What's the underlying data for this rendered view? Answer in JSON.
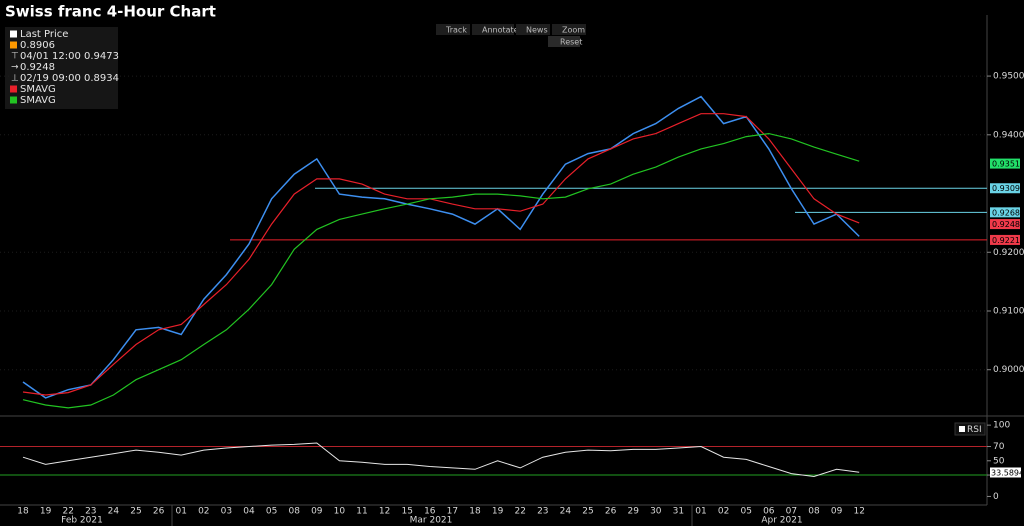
{
  "chart_data": {
    "type": "line",
    "title": "Swiss franc 4-Hour Chart",
    "toolbar": [
      "Track",
      "Annotate",
      "News",
      "Zoom"
    ],
    "reset": "Reset",
    "legend_info": [
      "0.8906",
      "04/01 12:00 0.9473",
      "0.9248",
      "02/19 09:00 0.8934"
    ],
    "categories": [
      "18",
      "19",
      "22",
      "23",
      "24",
      "25",
      "26",
      "01",
      "02",
      "03",
      "04",
      "05",
      "08",
      "09",
      "10",
      "11",
      "12",
      "15",
      "16",
      "17",
      "18",
      "19",
      "22",
      "23",
      "24",
      "25",
      "26",
      "29",
      "30",
      "31",
      "01",
      "02",
      "05",
      "06",
      "07",
      "08",
      "09",
      "12"
    ],
    "months": [
      "Feb 2021",
      "Mar 2021",
      "Apr 2021"
    ],
    "series": [
      {
        "name": "Last Price",
        "color": "#3d8ff0",
        "values": [
          0.8979,
          0.8952,
          0.8966,
          0.8974,
          0.9017,
          0.9068,
          0.9072,
          0.906,
          0.912,
          0.9162,
          0.9214,
          0.9291,
          0.9333,
          0.9359,
          0.9299,
          0.9294,
          0.9291,
          0.9282,
          0.9274,
          0.9265,
          0.9248,
          0.9274,
          0.9239,
          0.9299,
          0.935,
          0.9368,
          0.9376,
          0.9402,
          0.9419,
          0.9445,
          0.9465,
          0.9419,
          0.9431,
          0.9376,
          0.9308,
          0.9248,
          0.9265,
          0.9227
        ]
      },
      {
        "name": "SMAVG",
        "color": "#e8202a",
        "values": [
          0.8962,
          0.8957,
          0.8961,
          0.8974,
          0.9009,
          0.9043,
          0.9068,
          0.9077,
          0.9111,
          0.9145,
          0.9188,
          0.9248,
          0.9299,
          0.9325,
          0.9325,
          0.9316,
          0.9299,
          0.9291,
          0.9291,
          0.9282,
          0.9274,
          0.9274,
          0.927,
          0.9282,
          0.9325,
          0.9359,
          0.9376,
          0.9393,
          0.9402,
          0.9419,
          0.9436,
          0.9436,
          0.9431,
          0.9393,
          0.9342,
          0.9291,
          0.9265,
          0.925
        ]
      },
      {
        "name": "SMAVG",
        "color": "#22c322",
        "values": [
          0.8949,
          0.894,
          0.8935,
          0.894,
          0.8957,
          0.8983,
          0.9,
          0.9017,
          0.9043,
          0.9068,
          0.9103,
          0.9145,
          0.9205,
          0.9239,
          0.9256,
          0.9265,
          0.9274,
          0.9282,
          0.9291,
          0.9294,
          0.9299,
          0.9299,
          0.9296,
          0.9291,
          0.9294,
          0.9308,
          0.9316,
          0.9333,
          0.9345,
          0.9362,
          0.9376,
          0.9385,
          0.9397,
          0.9402,
          0.9393,
          0.9379,
          0.9367,
          0.9355
        ]
      }
    ],
    "ylim": [
      0.8928,
      0.9604
    ],
    "yticks": [
      {
        "value": 0.95,
        "label": "0.9500"
      },
      {
        "value": 0.94,
        "label": "0.9400"
      },
      {
        "value": 0.92,
        "label": "0.9200"
      },
      {
        "value": 0.91,
        "label": "0.9100"
      },
      {
        "value": 0.9,
        "label": "0.9000"
      }
    ],
    "hlines": [
      {
        "value": 0.9309,
        "color": "#6ad3e6"
      },
      {
        "value": 0.9268,
        "color": "#6ad3e6"
      },
      {
        "value": 0.9221,
        "color": "#e8202a"
      }
    ],
    "price_tags": [
      {
        "value": 0.9351,
        "label": "0.9351",
        "color": "#22e06a"
      },
      {
        "value": 0.9309,
        "label": "0.9309",
        "color": "#6ad3e6"
      },
      {
        "value": 0.9268,
        "label": "0.9268",
        "color": "#6ad3e6"
      },
      {
        "value": 0.9248,
        "label": "0.9248",
        "color": "#f03a4a"
      },
      {
        "value": 0.9221,
        "label": "0.9221",
        "color": "#f03a4a"
      }
    ],
    "rsi": {
      "name": "RSI",
      "color": "#e6e6e6",
      "values": [
        55,
        45,
        50,
        55,
        60,
        65,
        62,
        58,
        65,
        68,
        70,
        72,
        73,
        75,
        50,
        48,
        45,
        45,
        42,
        40,
        38,
        50,
        40,
        55,
        62,
        65,
        64,
        66,
        66,
        68,
        70,
        55,
        52,
        42,
        32,
        28,
        38,
        34
      ],
      "ylim": [
        -12,
        110
      ],
      "yticks": [
        100,
        70,
        50,
        30,
        0
      ],
      "levels": [
        {
          "value": 70,
          "color": "#b3222a"
        },
        {
          "value": 30,
          "color": "#22a022"
        }
      ],
      "last": {
        "value": 33.5894,
        "label": "33.5894"
      }
    }
  }
}
